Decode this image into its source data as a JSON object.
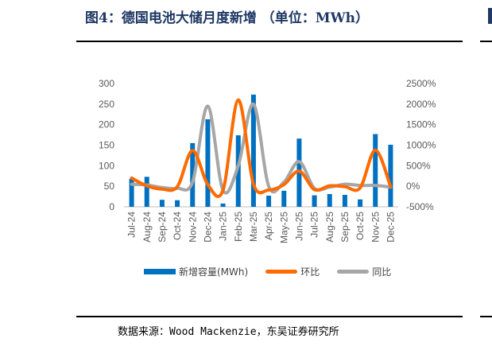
{
  "figure": {
    "title": "图4：德国电池大储月度新增 （单位：MWh）",
    "source": "数据来源：Wood Mackenzie，东吴证券研究所"
  },
  "colors": {
    "bar": "#0070c0",
    "mom": "#ff6a00",
    "yoy": "#a6a6a6",
    "title": "#1f3864"
  },
  "chart_data": {
    "type": "bar",
    "categories": [
      "Jul-24",
      "Aug-24",
      "Sep-24",
      "Oct-24",
      "Nov-24",
      "Dec-24",
      "Jan-25",
      "Feb-25",
      "Mar-25",
      "Apr-25",
      "May-25",
      "Jun-25",
      "Jul-25",
      "Aug-25",
      "Sep-25",
      "Oct-25",
      "Nov-25",
      "Dec-25"
    ],
    "series": [
      {
        "name": "新增容量(MWh)",
        "type": "bar",
        "axis": "left",
        "values": [
          68,
          73,
          17,
          16,
          155,
          213,
          8,
          174,
          273,
          27,
          39,
          166,
          28,
          31,
          29,
          18,
          177,
          151
        ]
      },
      {
        "name": "环比",
        "type": "line",
        "axis": "right",
        "values": [
          200,
          10,
          -70,
          -10,
          870,
          40,
          -95,
          2100,
          50,
          -90,
          40,
          370,
          -80,
          10,
          -10,
          -40,
          880,
          -10
        ]
      },
      {
        "name": "同比",
        "type": "line",
        "axis": "right",
        "values": [
          50,
          30,
          -30,
          -50,
          100,
          1950,
          -100,
          500,
          2000,
          0,
          100,
          600,
          -50,
          -20,
          50,
          20,
          20,
          -20
        ]
      }
    ],
    "left_axis": {
      "ylim": [
        0,
        300
      ],
      "ticks": [
        "0",
        "50",
        "100",
        "150",
        "200",
        "250",
        "300"
      ]
    },
    "right_axis": {
      "ylim": [
        -500,
        2500
      ],
      "ticks": [
        "-500%",
        "0%",
        "500%",
        "1000%",
        "1500%",
        "2000%",
        "2500%"
      ]
    },
    "grid": false,
    "legend_position": "bottom"
  }
}
